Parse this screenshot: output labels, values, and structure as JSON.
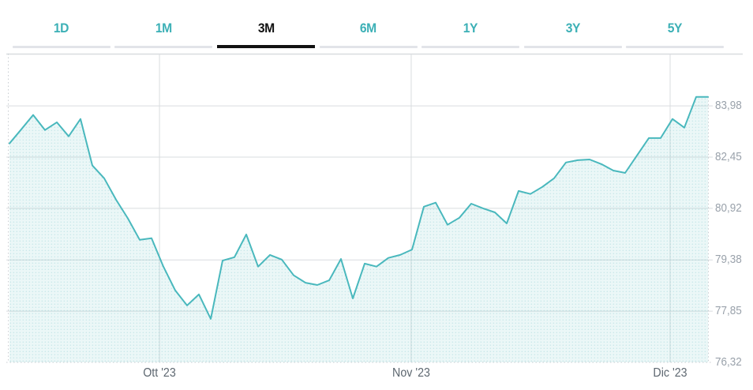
{
  "tabs": {
    "items": [
      {
        "label": "1D",
        "selected": false
      },
      {
        "label": "1M",
        "selected": false
      },
      {
        "label": "3M",
        "selected": true
      },
      {
        "label": "6M",
        "selected": false
      },
      {
        "label": "1Y",
        "selected": false
      },
      {
        "label": "3Y",
        "selected": false
      },
      {
        "label": "5Y",
        "selected": false
      }
    ]
  },
  "colors": {
    "accent": "#3cb0b6",
    "selected_tab": "#111111",
    "tab_underline": "#e2e4e9",
    "line": "#49b8bd",
    "fill_base": "rgba(99,190,195,0.13)",
    "fill_dot": "rgba(99,190,195,0.28)",
    "grid": "#d9dcdf",
    "grid_dotted": "#c8cdd1",
    "y_label": "#9aa2ab",
    "x_label": "#5d6770"
  },
  "chart_data": {
    "type": "area",
    "title": "",
    "xlabel": "",
    "ylabel": "",
    "legend": false,
    "grid": true,
    "ylim": [
      76.32,
      85.54
    ],
    "y_ticks": [
      {
        "label": "83,98",
        "value": 83.98
      },
      {
        "label": "82,45",
        "value": 82.45
      },
      {
        "label": "80,92",
        "value": 80.92
      },
      {
        "label": "79,38",
        "value": 79.38
      },
      {
        "label": "77,85",
        "value": 77.85
      },
      {
        "label": "76,32",
        "value": 76.32
      }
    ],
    "x_ticks": [
      {
        "label": "Ott '23",
        "index": 12.67
      },
      {
        "label": "Nov '23",
        "index": 33.93
      },
      {
        "label": "Dic '23",
        "index": 55.8
      }
    ],
    "values": [
      82.86,
      83.28,
      83.71,
      83.26,
      83.49,
      83.07,
      83.59,
      82.2,
      81.82,
      81.18,
      80.62,
      79.98,
      80.03,
      79.18,
      78.47,
      78.02,
      78.35,
      77.62,
      79.36,
      79.46,
      80.14,
      79.18,
      79.53,
      79.39,
      78.92,
      78.7,
      78.63,
      78.77,
      79.41,
      78.23,
      79.27,
      79.18,
      79.44,
      79.53,
      79.69,
      80.97,
      81.09,
      80.43,
      80.64,
      81.06,
      80.92,
      80.8,
      80.47,
      81.44,
      81.35,
      81.56,
      81.82,
      82.29,
      82.36,
      82.38,
      82.24,
      82.05,
      81.98,
      82.5,
      83.02,
      83.02,
      83.59,
      83.33,
      84.25,
      84.25
    ]
  }
}
